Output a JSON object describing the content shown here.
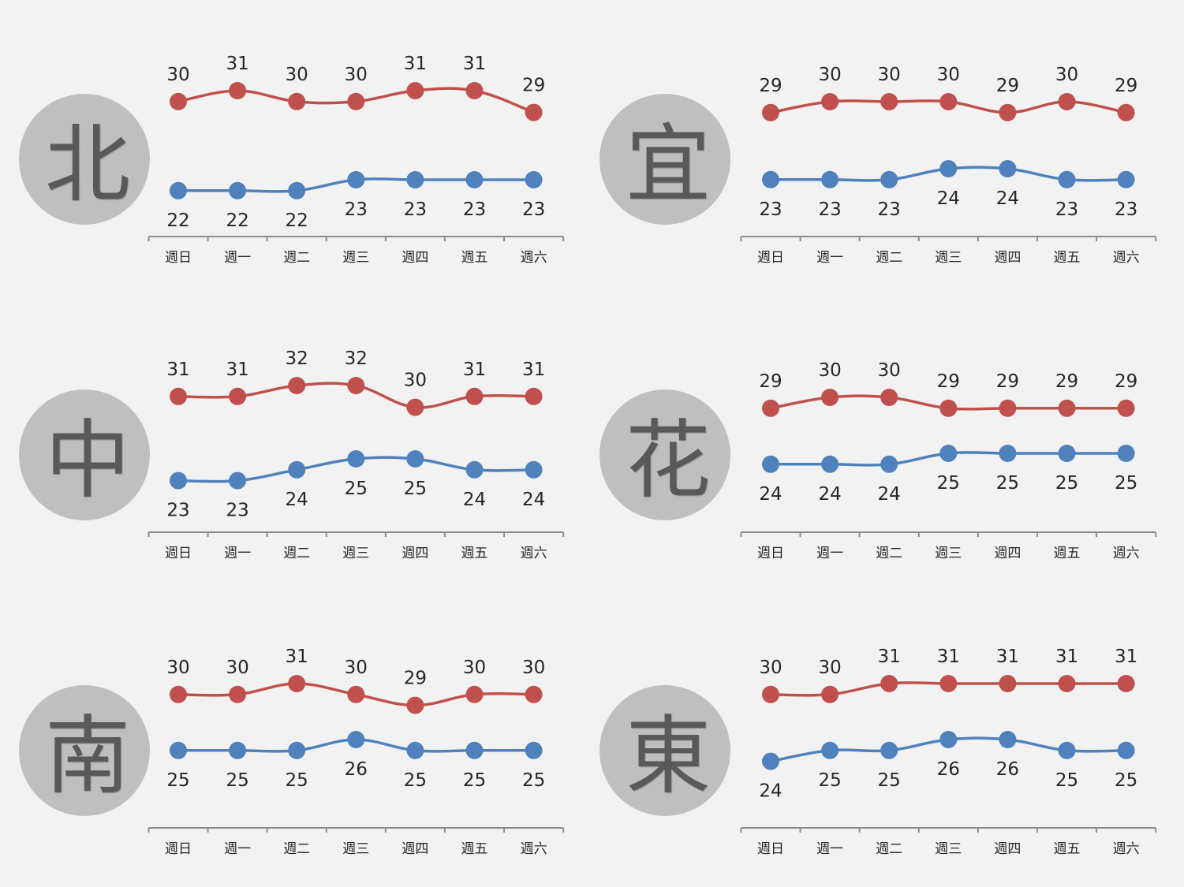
{
  "colors": {
    "high": "#c0504d",
    "low": "#4f81bd",
    "badge": "#bfbfbf",
    "axis": "#8c8c8c"
  },
  "chart_data": [
    {
      "type": "line",
      "city": "北",
      "categories": [
        "週日",
        "週一",
        "週二",
        "週三",
        "週四",
        "週五",
        "週六"
      ],
      "series": [
        {
          "values": [
            30,
            31,
            30,
            30,
            31,
            31,
            29
          ]
        },
        {
          "values": [
            22,
            22,
            22,
            23,
            23,
            23,
            23
          ]
        }
      ]
    },
    {
      "type": "line",
      "city": "宜",
      "categories": [
        "週日",
        "週一",
        "週二",
        "週三",
        "週四",
        "週五",
        "週六"
      ],
      "series": [
        {
          "values": [
            29,
            30,
            30,
            30,
            29,
            30,
            29
          ]
        },
        {
          "values": [
            23,
            23,
            23,
            24,
            24,
            23,
            23
          ]
        }
      ]
    },
    {
      "type": "line",
      "city": "中",
      "categories": [
        "週日",
        "週一",
        "週二",
        "週三",
        "週四",
        "週五",
        "週六"
      ],
      "series": [
        {
          "values": [
            31,
            31,
            32,
            32,
            30,
            31,
            31
          ]
        },
        {
          "values": [
            23,
            23,
            24,
            25,
            25,
            24,
            24
          ]
        }
      ]
    },
    {
      "type": "line",
      "city": "花",
      "categories": [
        "週日",
        "週一",
        "週二",
        "週三",
        "週四",
        "週五",
        "週六"
      ],
      "series": [
        {
          "values": [
            29,
            30,
            30,
            29,
            29,
            29,
            29
          ]
        },
        {
          "values": [
            24,
            24,
            24,
            25,
            25,
            25,
            25
          ]
        }
      ]
    },
    {
      "type": "line",
      "city": "南",
      "categories": [
        "週日",
        "週一",
        "週二",
        "週三",
        "週四",
        "週五",
        "週六"
      ],
      "series": [
        {
          "values": [
            30,
            30,
            31,
            30,
            29,
            30,
            30
          ]
        },
        {
          "values": [
            25,
            25,
            25,
            26,
            25,
            25,
            25
          ]
        }
      ]
    },
    {
      "type": "line",
      "city": "東",
      "categories": [
        "週日",
        "週一",
        "週二",
        "週三",
        "週四",
        "週五",
        "週六"
      ],
      "series": [
        {
          "values": [
            30,
            30,
            31,
            31,
            31,
            31,
            31
          ]
        },
        {
          "values": [
            24,
            25,
            25,
            26,
            26,
            25,
            25
          ]
        }
      ]
    }
  ]
}
